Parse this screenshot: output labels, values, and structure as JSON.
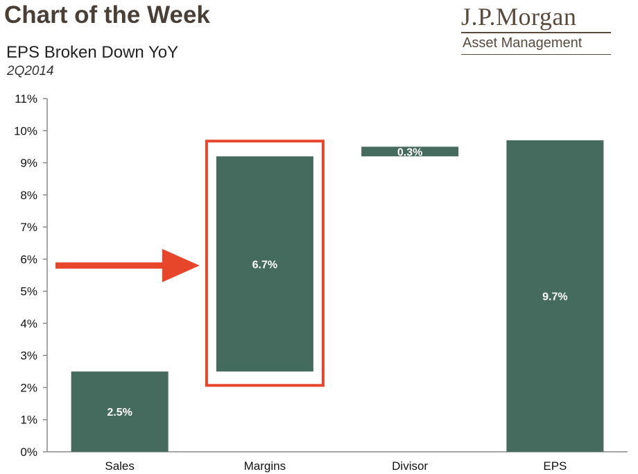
{
  "header": {
    "title": "Chart of the Week",
    "brand_name": "J.P.Morgan",
    "brand_sub": "Asset Management"
  },
  "chart_data": {
    "type": "bar",
    "title": "EPS Broken Down YoY",
    "subtitle": "2Q2014",
    "categories": [
      "Sales",
      "Margins",
      "Divisor",
      "EPS"
    ],
    "values": [
      2.5,
      6.7,
      0.3,
      9.7
    ],
    "bases": [
      0,
      2.5,
      9.2,
      0
    ],
    "value_labels": [
      "2.5%",
      "6.7%",
      "0.3%",
      "9.7%"
    ],
    "ylim": [
      0,
      11
    ],
    "yticks": [
      "0%",
      "1%",
      "2%",
      "3%",
      "4%",
      "5%",
      "6%",
      "7%",
      "8%",
      "9%",
      "10%",
      "11%"
    ],
    "xlabel": "",
    "ylabel": "",
    "grid": false,
    "highlight": "Margins"
  },
  "colors": {
    "bar": "#456a5e",
    "highlight": "#e8462a",
    "axis": "#888888",
    "brand": "#5a4a3c"
  }
}
